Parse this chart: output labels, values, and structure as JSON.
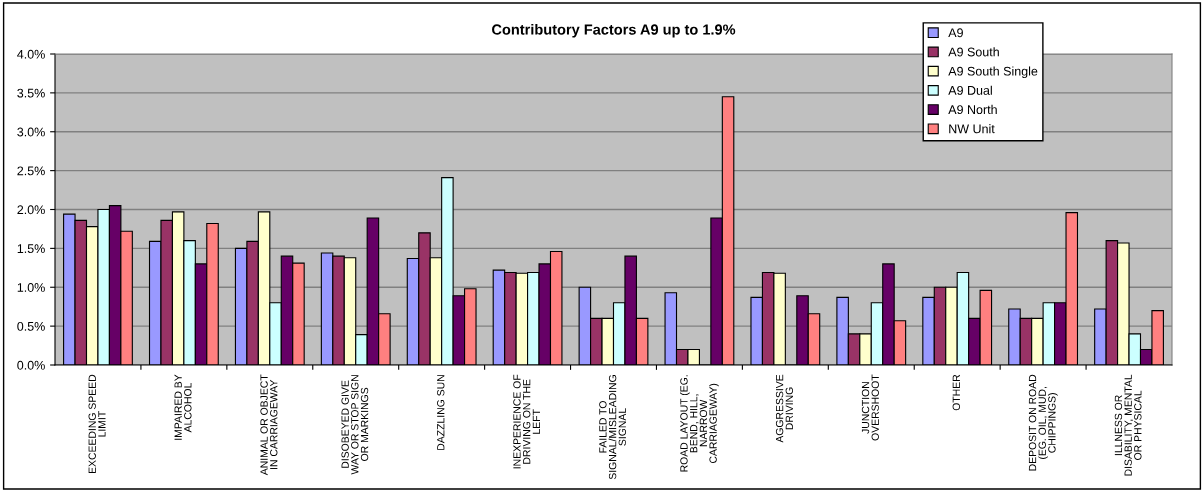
{
  "chart_data": {
    "type": "bar",
    "title": "Contributory Factors A9 up to 1.9%",
    "categories": [
      "EXCEEDING SPEED\nLIMIT",
      "IMPAIRED BY\nALCOHOL",
      "ANIMAL OR OBJECT\nIN CARRIAGEWAY",
      "DISOBEYED GIVE\nWAY OR STOP SIGN\nOR MARKINGS",
      "DAZZLING SUN",
      "INEXPERIENCE OF\nDRIVING ON THE\nLEFT",
      "FAILED TO\nSIGNAL/MISLEADING\nSIGNAL",
      "ROAD LAYOUT (EG.\nBEND, HILL,\nNARROW\nCARRIAGEWAY)",
      "AGGRESSIVE\nDRIVING",
      "JUNCTION\nOVERSHOOT",
      "OTHER",
      "DEPOSIT ON ROAD\n(EG. OIL, MUD,\nCHIPPINGS)",
      "ILLNESS OR\nDISABILITY, MENTAL\nOR PHYSICAL"
    ],
    "series": [
      {
        "name": "A9",
        "color": "#9999ff",
        "values": [
          1.94,
          1.59,
          1.5,
          1.44,
          1.37,
          1.22,
          1.0,
          0.93,
          0.87,
          0.87,
          0.87,
          0.72,
          0.72
        ]
      },
      {
        "name": "A9 South",
        "color": "#993366",
        "values": [
          1.86,
          1.86,
          1.59,
          1.4,
          1.7,
          1.19,
          0.6,
          0.2,
          1.19,
          0.4,
          1.0,
          0.6,
          1.6
        ]
      },
      {
        "name": "A9 South Single",
        "color": "#ffffcc",
        "values": [
          1.78,
          1.97,
          1.97,
          1.38,
          1.38,
          1.18,
          0.6,
          0.2,
          1.18,
          0.4,
          1.0,
          0.6,
          1.57
        ]
      },
      {
        "name": "A9 Dual",
        "color": "#ccffff",
        "values": [
          2.0,
          1.6,
          0.8,
          0.39,
          2.41,
          1.19,
          0.8,
          0,
          0,
          0.8,
          1.19,
          0.8,
          0.4
        ]
      },
      {
        "name": "A9 North",
        "color": "#660066",
        "values": [
          2.05,
          1.3,
          1.4,
          1.89,
          0.89,
          1.3,
          1.4,
          1.89,
          0.89,
          1.3,
          0.6,
          0.8,
          0.2
        ]
      },
      {
        "name": "NW Unit",
        "color": "#ff8080",
        "values": [
          1.72,
          1.82,
          1.31,
          0.66,
          0.98,
          1.46,
          0.6,
          3.45,
          0.66,
          0.57,
          0.96,
          1.96,
          0.7
        ]
      }
    ],
    "ylim": [
      0,
      4.0
    ],
    "yticks": [
      {
        "value": 0,
        "label": "0.0%"
      },
      {
        "value": 0.5,
        "label": "0.5%"
      },
      {
        "value": 1.0,
        "label": "1.0%"
      },
      {
        "value": 1.5,
        "label": "1.5%"
      },
      {
        "value": 2.0,
        "label": "2.0%"
      },
      {
        "value": 2.5,
        "label": "2.5%"
      },
      {
        "value": 3.0,
        "label": "3.0%"
      },
      {
        "value": 3.5,
        "label": "3.5%"
      },
      {
        "value": 4.0,
        "label": "4.0%"
      }
    ],
    "grid": "y",
    "legend": "top right"
  }
}
